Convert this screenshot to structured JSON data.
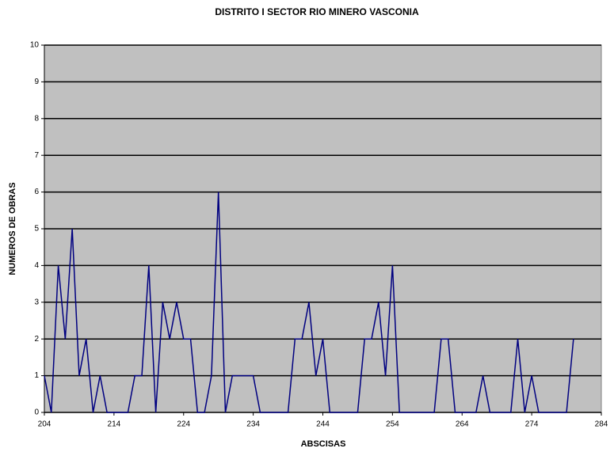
{
  "chart_data": {
    "type": "line",
    "title": "DISTRITO I  SECTOR RIO MINERO VASCONIA",
    "x_label": "ABSCISAS",
    "y_label": "NUMEROS DE OBRAS",
    "x": [
      204,
      205,
      206,
      207,
      208,
      209,
      210,
      211,
      212,
      213,
      214,
      215,
      216,
      217,
      218,
      219,
      220,
      221,
      222,
      223,
      224,
      225,
      226,
      227,
      228,
      229,
      230,
      231,
      232,
      233,
      234,
      235,
      236,
      237,
      238,
      239,
      240,
      241,
      242,
      243,
      244,
      245,
      246,
      247,
      248,
      249,
      250,
      251,
      252,
      253,
      254,
      255,
      256,
      257,
      258,
      259,
      260,
      261,
      262,
      263,
      264,
      265,
      266,
      267,
      268,
      269,
      270,
      271,
      272,
      273,
      274,
      275,
      276,
      277,
      278,
      279,
      280
    ],
    "values": [
      1,
      0,
      4,
      2,
      5,
      1,
      2,
      0,
      1,
      0,
      0,
      0,
      0,
      1,
      1,
      4,
      0,
      3,
      2,
      3,
      2,
      2,
      0,
      0,
      1,
      6,
      0,
      1,
      1,
      1,
      1,
      0,
      0,
      0,
      0,
      0,
      2,
      2,
      3,
      1,
      2,
      0,
      0,
      0,
      0,
      0,
      2,
      2,
      3,
      1,
      4,
      0,
      0,
      0,
      0,
      0,
      0,
      2,
      2,
      0,
      0,
      0,
      0,
      1,
      0,
      0,
      0,
      0,
      2,
      0,
      1,
      0,
      0,
      0,
      0,
      0,
      2
    ],
    "color": "#000080",
    "plot_color": "#c0c0c0",
    "grid": true,
    "xlim": [
      204,
      284
    ],
    "xticks": [
      204,
      214,
      224,
      234,
      244,
      254,
      264,
      274,
      284
    ],
    "ylim": [
      0,
      10
    ],
    "yticks": [
      0,
      1,
      2,
      3,
      4,
      5,
      6,
      7,
      8,
      9,
      10
    ]
  }
}
